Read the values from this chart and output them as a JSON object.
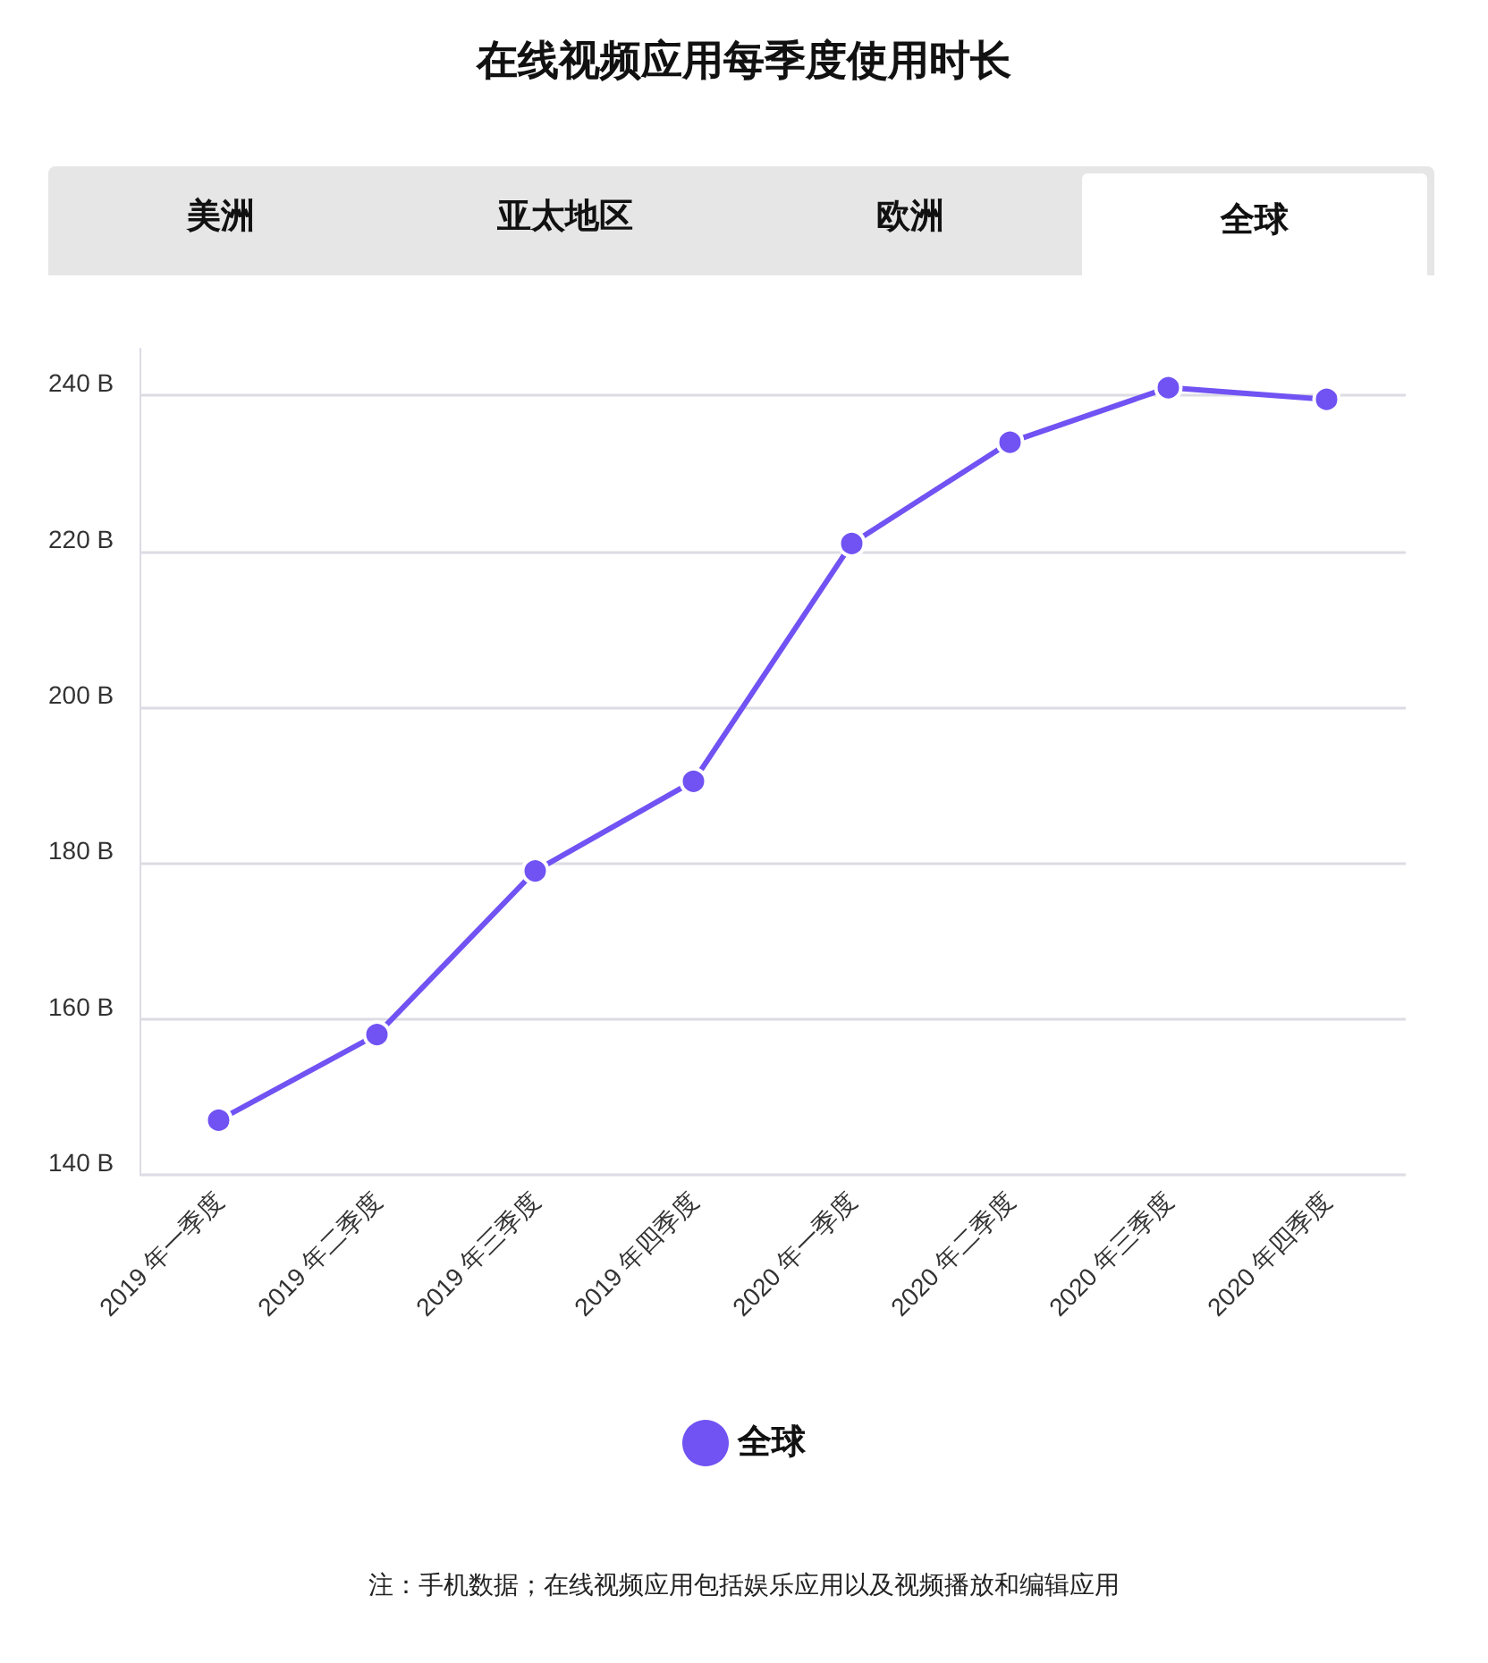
{
  "chart_data": {
    "type": "line",
    "title": "在线视频应用每季度使用时长",
    "categories": [
      "2019 年一季度",
      "2019 年二季度",
      "2019 年三季度",
      "2019 年四季度",
      "2020 年一季度",
      "2020 年二季度",
      "2020 年三季度",
      "2020 年四季度"
    ],
    "series": [
      {
        "name": "全球",
        "color": "#7152f3",
        "values": [
          147,
          158,
          179,
          190.5,
          221,
          234,
          241,
          239.5
        ]
      }
    ],
    "ylim": [
      140,
      246
    ],
    "yticks": [
      {
        "value": 140,
        "label": "140 B"
      },
      {
        "value": 160,
        "label": "160 B"
      },
      {
        "value": 180,
        "label": "180 B"
      },
      {
        "value": 200,
        "label": "200 B"
      },
      {
        "value": 220,
        "label": "220 B"
      },
      {
        "value": 240,
        "label": "240 B"
      }
    ],
    "grid": "y",
    "legend": "bottom",
    "marker": "circle",
    "line_style": "solid",
    "annotations": [
      "美洲",
      "亚太地区",
      "欧洲",
      "全球",
      "注：手机数据；在线视频应用包括娱乐应用以及视频播放和编辑应用"
    ]
  }
}
